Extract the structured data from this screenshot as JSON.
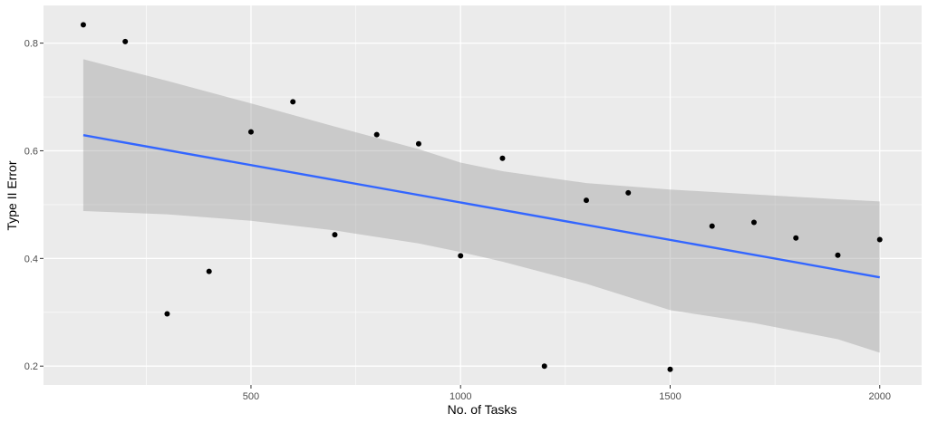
{
  "chart_data": {
    "type": "scatter",
    "xlabel": "No. of Tasks",
    "ylabel": "Type II Error",
    "xlim": [
      5,
      2100
    ],
    "ylim": [
      0.165,
      0.87
    ],
    "x_ticks": [
      500,
      1000,
      1500,
      2000
    ],
    "y_ticks": [
      0.2,
      0.4,
      0.6,
      0.8
    ],
    "x_tick_labels": [
      "500",
      "1000",
      "1500",
      "2000"
    ],
    "y_tick_labels": [
      "0.2",
      "0.4",
      "0.6",
      "0.8"
    ],
    "points": [
      {
        "x": 100,
        "y": 0.834
      },
      {
        "x": 200,
        "y": 0.803
      },
      {
        "x": 300,
        "y": 0.297
      },
      {
        "x": 400,
        "y": 0.376
      },
      {
        "x": 500,
        "y": 0.635
      },
      {
        "x": 600,
        "y": 0.691
      },
      {
        "x": 700,
        "y": 0.444
      },
      {
        "x": 800,
        "y": 0.63
      },
      {
        "x": 900,
        "y": 0.613
      },
      {
        "x": 1000,
        "y": 0.405
      },
      {
        "x": 1100,
        "y": 0.586
      },
      {
        "x": 1200,
        "y": 0.2
      },
      {
        "x": 1300,
        "y": 0.508
      },
      {
        "x": 1400,
        "y": 0.522
      },
      {
        "x": 1500,
        "y": 0.194
      },
      {
        "x": 1600,
        "y": 0.46
      },
      {
        "x": 1700,
        "y": 0.467
      },
      {
        "x": 1800,
        "y": 0.438
      },
      {
        "x": 1900,
        "y": 0.406
      },
      {
        "x": 2000,
        "y": 0.435
      }
    ],
    "trend_line": {
      "x": [
        100,
        2000
      ],
      "y": [
        0.629,
        0.365
      ],
      "color": "#3366FF"
    },
    "confidence_band": {
      "x": [
        100,
        300,
        500,
        700,
        900,
        1000,
        1100,
        1300,
        1500,
        1700,
        1900,
        2000
      ],
      "lower": [
        0.488,
        0.482,
        0.47,
        0.452,
        0.428,
        0.412,
        0.394,
        0.353,
        0.304,
        0.28,
        0.25,
        0.225
      ],
      "upper": [
        0.77,
        0.73,
        0.688,
        0.645,
        0.603,
        0.578,
        0.562,
        0.54,
        0.528,
        0.519,
        0.51,
        0.506
      ],
      "color": "#999999"
    },
    "grid": true,
    "legend": "none",
    "panel_background": "#EBEBEB",
    "grid_color": "#FFFFFF",
    "point_color": "#000000"
  }
}
